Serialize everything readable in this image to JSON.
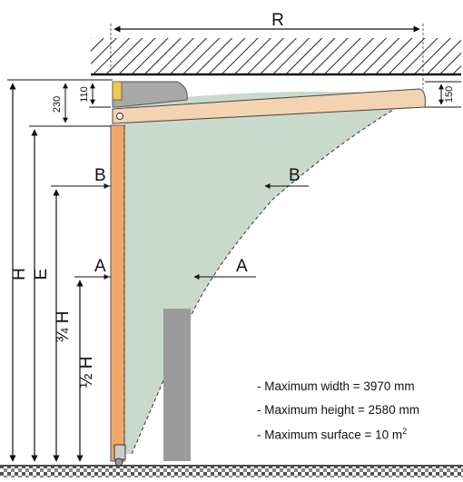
{
  "labels": {
    "R": "R",
    "H": "H",
    "E": "E",
    "B": "B",
    "A": "A",
    "three_quarter_H": "¾ H",
    "half_H": "½ H"
  },
  "dimensions": {
    "d230": "230",
    "d110": "110",
    "d150": "150"
  },
  "specs": {
    "max_width": "- Maximum width = 3970 mm",
    "max_height": "- Maximum height = 2580 mm",
    "max_surface": "- Maximum surface = 10 m",
    "max_surface_sup": "2"
  },
  "colors": {
    "fabric": "#c9d9cc",
    "frame_orange": "#f0a86a",
    "arm_beige": "#f4d3b0",
    "motor_grey": "#a8a8a8",
    "counterweight_grey": "#9b9b9b"
  }
}
